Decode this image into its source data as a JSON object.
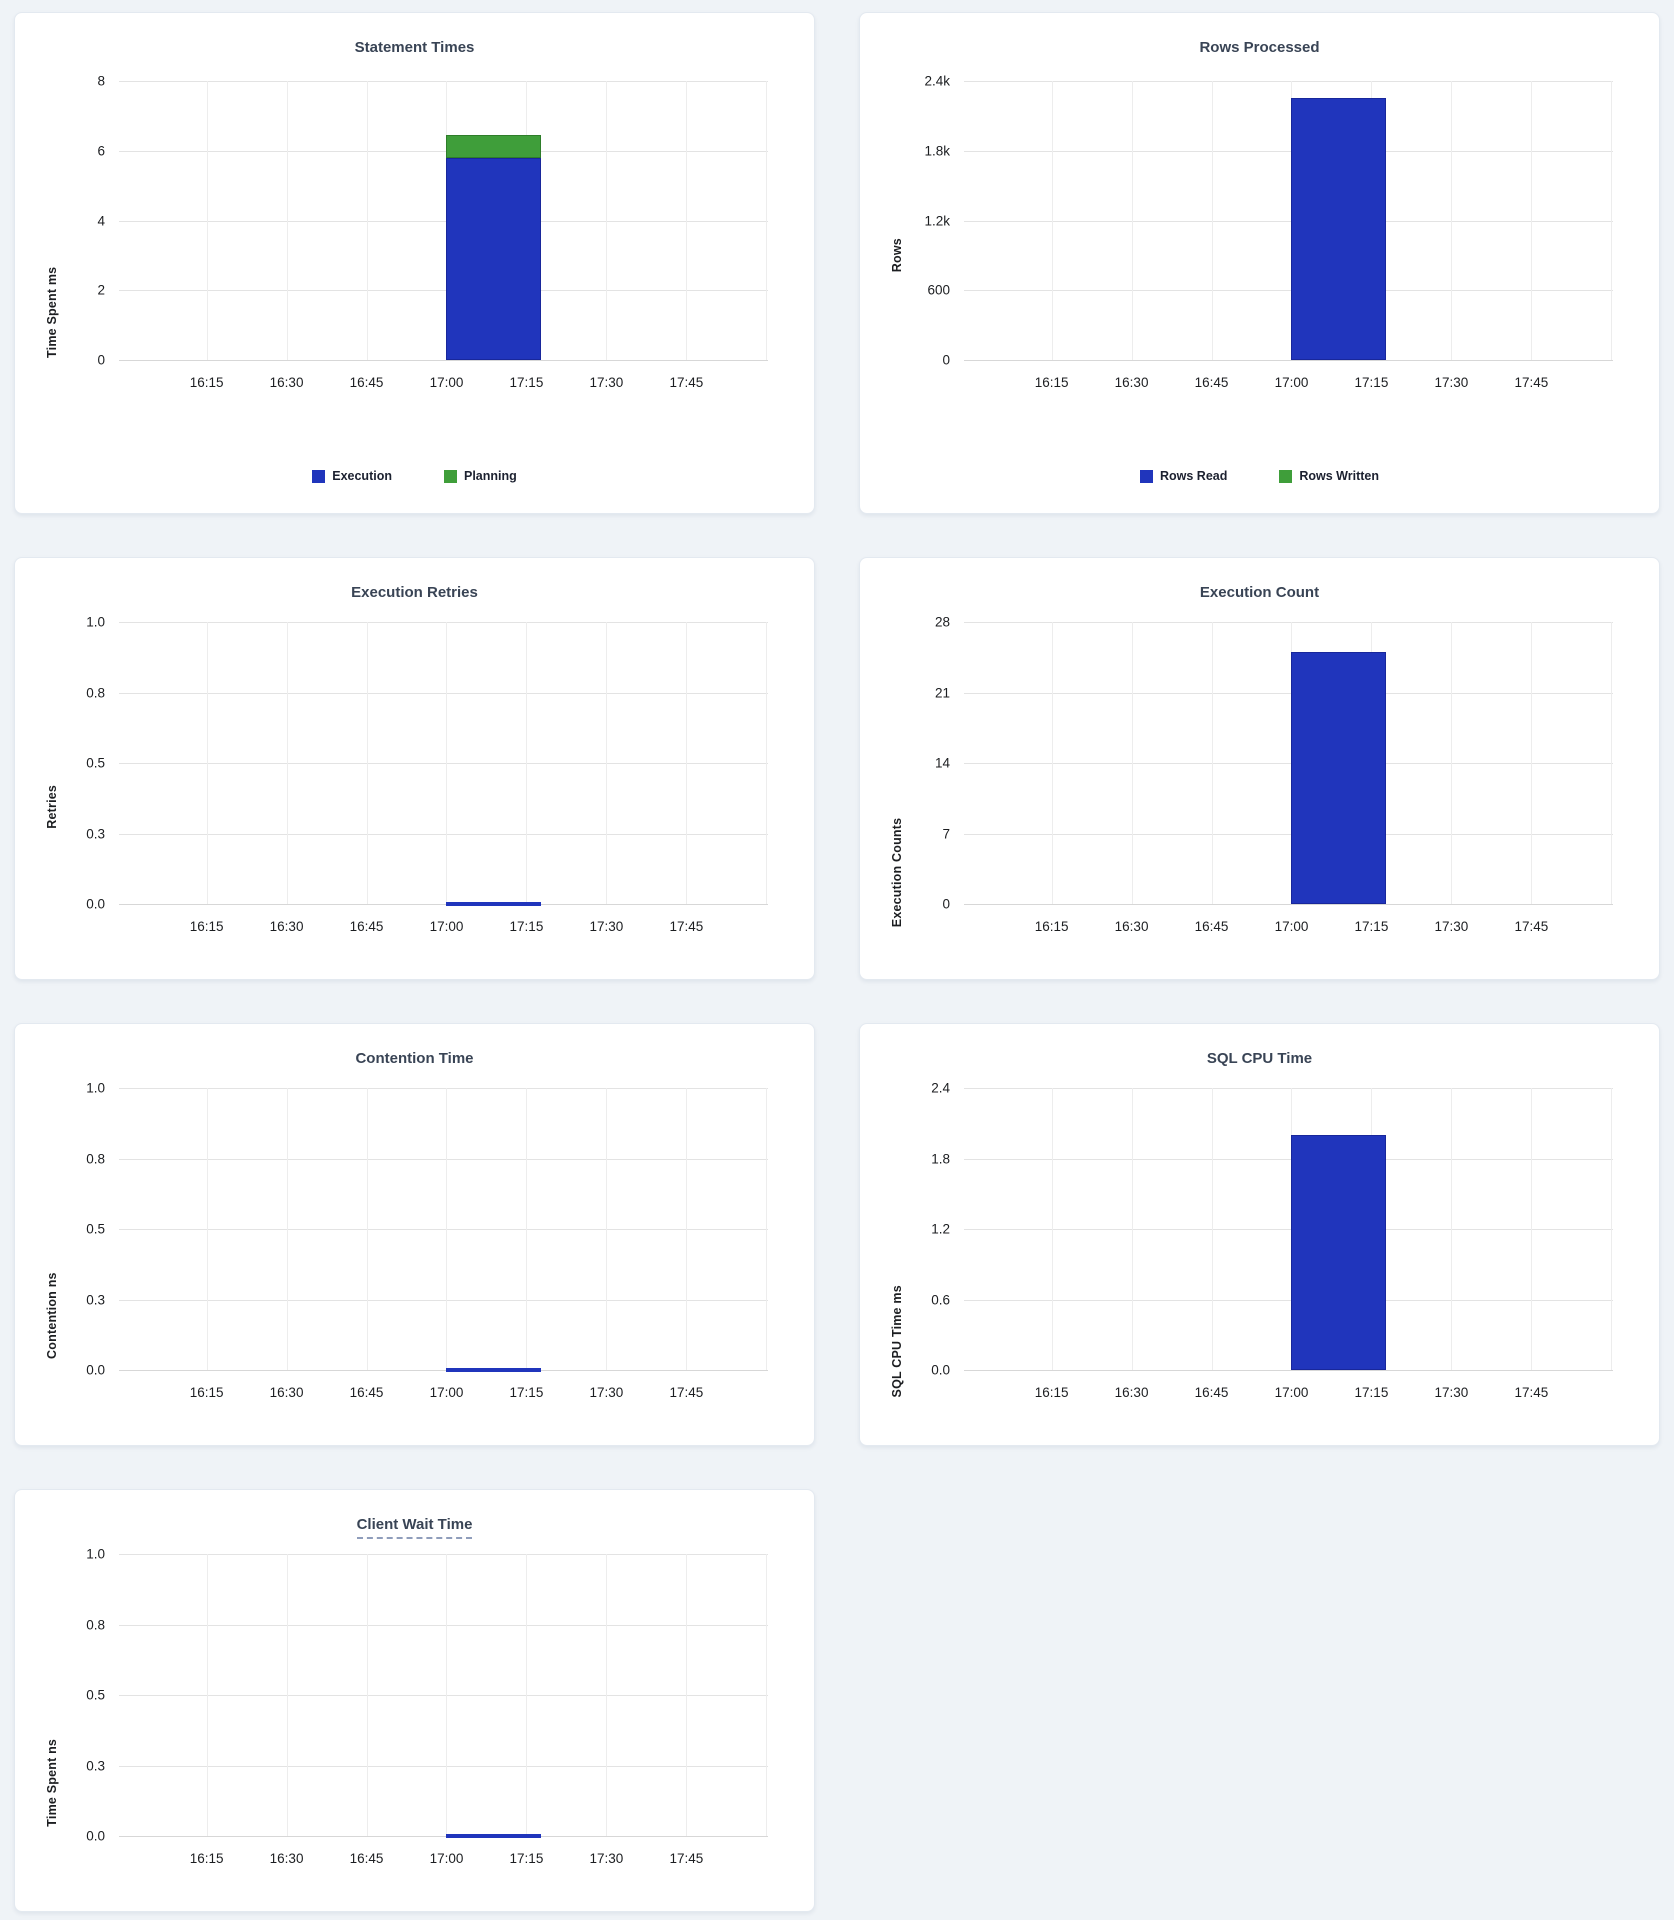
{
  "page": {
    "background": "#eff3f7",
    "card_background": "#ffffff"
  },
  "colors": {
    "bar_blue": "#2035bc",
    "bar_blue_stroke": "#18279b",
    "bar_green": "#3f9e3a",
    "bar_green_stroke": "#2e7d2a",
    "title_text": "#394455",
    "tick_text": "#1c1e21"
  },
  "x_ticks": [
    "16:15",
    "16:30",
    "16:45",
    "17:00",
    "17:15",
    "17:30",
    "17:45"
  ],
  "chart_data": [
    {
      "type": "bar",
      "title": "Statement Times",
      "ylabel": "Time Spent ms",
      "xlabel": "",
      "ylim": [
        0,
        8
      ],
      "yticks": [
        "8",
        "6",
        "4",
        "2",
        "0"
      ],
      "x_ticks": [
        "16:15",
        "16:30",
        "16:45",
        "17:00",
        "17:15",
        "17:30",
        "17:45"
      ],
      "stacked": true,
      "bar_time_range": [
        "17:00",
        "17:15"
      ],
      "grid": "on",
      "legend_position": "bottom",
      "series": [
        {
          "name": "Execution",
          "color": "#2035bc",
          "stroke": "#18279b",
          "x": "17:00",
          "value": 5.8
        },
        {
          "name": "Planning",
          "color": "#3f9e3a",
          "stroke": "#2e7d2a",
          "x": "17:00",
          "value": 0.65
        }
      ],
      "legend": [
        "Execution",
        "Planning"
      ]
    },
    {
      "type": "bar",
      "title": "Rows Processed",
      "ylabel": "Rows",
      "xlabel": "",
      "ylim": [
        0,
        2400
      ],
      "yticks": [
        "2.4k",
        "1.8k",
        "1.2k",
        "600",
        "0"
      ],
      "x_ticks": [
        "16:15",
        "16:30",
        "16:45",
        "17:00",
        "17:15",
        "17:30",
        "17:45"
      ],
      "stacked": true,
      "bar_time_range": [
        "17:00",
        "17:15"
      ],
      "grid": "on",
      "legend_position": "bottom",
      "series": [
        {
          "name": "Rows Read",
          "color": "#2035bc",
          "stroke": "#18279b",
          "x": "17:00",
          "value": 2250
        },
        {
          "name": "Rows Written",
          "color": "#3f9e3a",
          "stroke": "#2e7d2a",
          "x": "17:00",
          "value": 0
        }
      ],
      "legend": [
        "Rows Read",
        "Rows Written"
      ]
    },
    {
      "type": "bar",
      "title": "Execution Retries",
      "ylabel": "Retries",
      "xlabel": "",
      "ylim": [
        0,
        1
      ],
      "yticks": [
        "1.0",
        "0.8",
        "0.5",
        "0.3",
        "0.0"
      ],
      "x_ticks": [
        "16:15",
        "16:30",
        "16:45",
        "17:00",
        "17:15",
        "17:30",
        "17:45"
      ],
      "bar_time_range": [
        "17:00",
        "17:15"
      ],
      "grid": "on",
      "series": [
        {
          "name": "Retries",
          "color": "#2035bc",
          "stroke": "#18279b",
          "x": "17:00",
          "value": 0
        }
      ]
    },
    {
      "type": "bar",
      "title": "Execution Count",
      "ylabel": "Execution Counts",
      "xlabel": "",
      "ylim": [
        0,
        28
      ],
      "yticks": [
        "28",
        "21",
        "14",
        "7",
        "0"
      ],
      "x_ticks": [
        "16:15",
        "16:30",
        "16:45",
        "17:00",
        "17:15",
        "17:30",
        "17:45"
      ],
      "bar_time_range": [
        "17:00",
        "17:15"
      ],
      "grid": "on",
      "series": [
        {
          "name": "Execution Count",
          "color": "#2035bc",
          "stroke": "#18279b",
          "x": "17:00",
          "value": 25
        }
      ]
    },
    {
      "type": "bar",
      "title": "Contention Time",
      "ylabel": "Contention ns",
      "xlabel": "",
      "ylim": [
        0,
        1
      ],
      "yticks": [
        "1.0",
        "0.8",
        "0.5",
        "0.3",
        "0.0"
      ],
      "x_ticks": [
        "16:15",
        "16:30",
        "16:45",
        "17:00",
        "17:15",
        "17:30",
        "17:45"
      ],
      "bar_time_range": [
        "17:00",
        "17:15"
      ],
      "grid": "on",
      "series": [
        {
          "name": "Contention",
          "color": "#2035bc",
          "stroke": "#18279b",
          "x": "17:00",
          "value": 0
        }
      ]
    },
    {
      "type": "bar",
      "title": "SQL CPU Time",
      "ylabel": "SQL CPU Time ms",
      "xlabel": "",
      "ylim": [
        0,
        2.4
      ],
      "yticks": [
        "2.4",
        "1.8",
        "1.2",
        "0.6",
        "0.0"
      ],
      "x_ticks": [
        "16:15",
        "16:30",
        "16:45",
        "17:00",
        "17:15",
        "17:30",
        "17:45"
      ],
      "bar_time_range": [
        "17:00",
        "17:15"
      ],
      "grid": "on",
      "series": [
        {
          "name": "SQL CPU Time",
          "color": "#2035bc",
          "stroke": "#18279b",
          "x": "17:00",
          "value": 2.0
        }
      ]
    },
    {
      "type": "bar",
      "title": "Client Wait Time",
      "title_dashed_underline": true,
      "ylabel": "Time Spent ns",
      "xlabel": "",
      "ylim": [
        0,
        1
      ],
      "yticks": [
        "1.0",
        "0.8",
        "0.5",
        "0.3",
        "0.0"
      ],
      "x_ticks": [
        "16:15",
        "16:30",
        "16:45",
        "17:00",
        "17:15",
        "17:30",
        "17:45"
      ],
      "bar_time_range": [
        "17:00",
        "17:15"
      ],
      "grid": "on",
      "series": [
        {
          "name": "Client Wait",
          "color": "#2035bc",
          "stroke": "#18279b",
          "x": "17:00",
          "value": 0
        }
      ]
    }
  ]
}
